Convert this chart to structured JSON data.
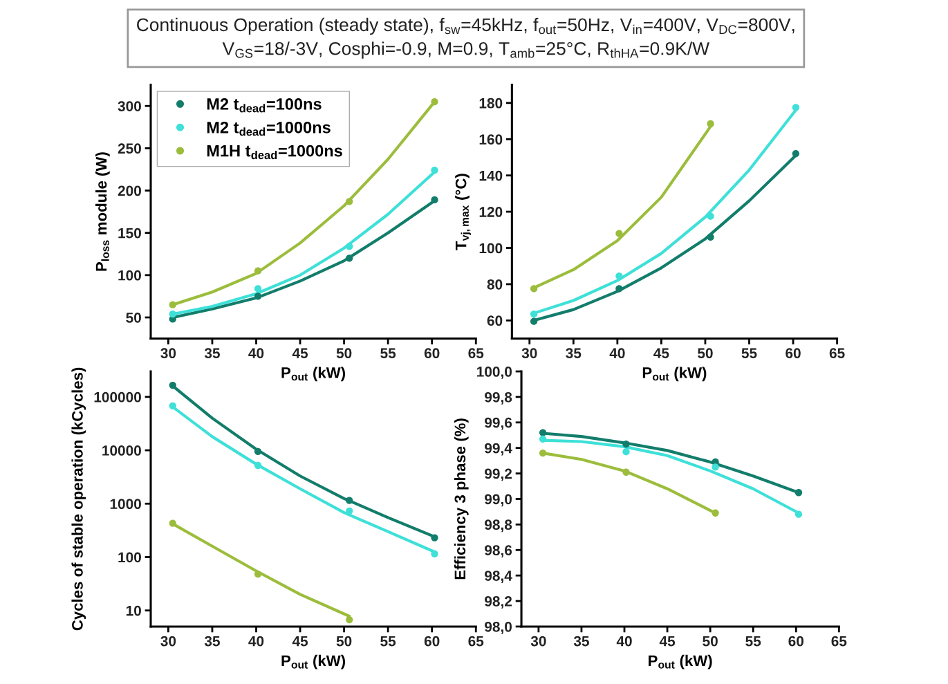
{
  "chart_data": [
    {
      "type": "scatter",
      "title": "Continuous Operation (steady state), f$_{sw}$=45kHz, f$_{out}$=50Hz, V$_{in}$=400V, V$_{DC}$=800V,\nV$_{GS}$=18/-3V, Cosphi=-0.9, M=0.9, T$_{amb}$=25°C, R$_{thHA}$=0.9K/W",
      "xlabel": "P$_{out}$ (kW)",
      "ylabel": "P$_{loss}$ module (W)",
      "xlim": [
        28,
        65
      ],
      "xticks": [
        30,
        35,
        40,
        45,
        50,
        55,
        60,
        65
      ],
      "ylim": [
        25,
        325
      ],
      "yticks": [
        50,
        100,
        150,
        200,
        250,
        300
      ],
      "grid": false,
      "legend": "top left",
      "marker": "circle",
      "series": [
        {
          "name": "M2 t$_{dead}$=100ns",
          "color": "#127d6b",
          "x": [
            30.5,
            40.2,
            50.6,
            60.3
          ],
          "values": [
            48,
            75,
            120,
            189
          ]
        },
        {
          "name": "M2 t$_{dead}$=1000ns",
          "color": "#3ee0d8",
          "x": [
            30.5,
            40.2,
            50.6,
            60.3
          ],
          "values": [
            54,
            84,
            134,
            224
          ]
        },
        {
          "name": "M1H t$_{dead}$=1000ns",
          "color": "#9cbd3c",
          "x": [
            30.5,
            40.2,
            50.6,
            60.3
          ],
          "values": [
            65,
            105,
            187,
            305
          ]
        },
        {
          "type": "line",
          "marker": "none",
          "color": "#127d6b",
          "x": [
            30.5,
            35,
            40,
            45,
            50,
            55,
            60.3
          ],
          "values": [
            50,
            60,
            73,
            93,
            117,
            150,
            188
          ]
        },
        {
          "type": "line",
          "marker": "none",
          "color": "#3ee0d8",
          "x": [
            30.5,
            35,
            40,
            45,
            50,
            55,
            60.3
          ],
          "values": [
            54,
            63,
            78,
            100,
            132,
            172,
            222
          ]
        },
        {
          "type": "line",
          "marker": "none",
          "color": "#9cbd3c",
          "x": [
            30.5,
            35,
            40,
            45,
            50,
            55,
            60.3
          ],
          "values": [
            65,
            80,
            102,
            138,
            182,
            237,
            305
          ]
        }
      ]
    },
    {
      "type": "scatter",
      "xlabel": "P$_{out}$ (kW)",
      "ylabel": "T$_{vj,max}$ (°C)",
      "xlim": [
        28,
        65
      ],
      "xticks": [
        30,
        35,
        40,
        45,
        50,
        55,
        60,
        65
      ],
      "ylim": [
        50,
        190
      ],
      "yticks": [
        60,
        80,
        100,
        120,
        140,
        160,
        180
      ],
      "grid": false,
      "marker": "circle",
      "series": [
        {
          "color": "#127d6b",
          "x": [
            30.5,
            40.2,
            50.6,
            60.3
          ],
          "values": [
            59.5,
            77.5,
            106,
            152
          ]
        },
        {
          "color": "#3ee0d8",
          "x": [
            30.5,
            40.2,
            50.6,
            60.3
          ],
          "values": [
            63.5,
            84.5,
            117.5,
            177.5
          ]
        },
        {
          "color": "#9cbd3c",
          "x": [
            30.5,
            40.2,
            50.6
          ],
          "values": [
            77.5,
            108,
            168.5
          ]
        },
        {
          "type": "line",
          "marker": "none",
          "color": "#127d6b",
          "x": [
            30.5,
            35,
            40,
            45,
            50,
            55,
            60.3
          ],
          "values": [
            60,
            66,
            76,
            89,
            105,
            126,
            151
          ]
        },
        {
          "type": "line",
          "marker": "none",
          "color": "#3ee0d8",
          "x": [
            30.5,
            35,
            40,
            45,
            50,
            55,
            60.3
          ],
          "values": [
            64,
            71,
            82,
            97,
            117,
            143,
            176
          ]
        },
        {
          "type": "line",
          "marker": "none",
          "color": "#9cbd3c",
          "x": [
            30.5,
            35,
            40,
            45,
            50.6
          ],
          "values": [
            78,
            88,
            104,
            128,
            167
          ]
        }
      ]
    },
    {
      "type": "scatter",
      "xlabel": "P$_{out}$ (kW)",
      "ylabel": "Cycles of stable operation (kCycles)",
      "log": "y",
      "xlim": [
        28,
        65
      ],
      "xticks": [
        30,
        35,
        40,
        45,
        50,
        55,
        60,
        65
      ],
      "ylim": [
        5,
        300000
      ],
      "yticks": [
        10,
        100,
        1000,
        10000,
        100000
      ],
      "grid": false,
      "marker": "circle",
      "series": [
        {
          "color": "#127d6b",
          "x": [
            30.5,
            40.2,
            50.6,
            60.3
          ],
          "values": [
            165000,
            9500,
            1150,
            230
          ]
        },
        {
          "color": "#3ee0d8",
          "x": [
            30.5,
            40.2,
            50.6,
            60.3
          ],
          "values": [
            68000,
            5200,
            730,
            115
          ]
        },
        {
          "color": "#9cbd3c",
          "x": [
            30.5,
            40.2,
            50.6
          ],
          "values": [
            430,
            48,
            6.7
          ]
        },
        {
          "type": "line",
          "marker": "none",
          "color": "#127d6b",
          "x": [
            30.5,
            35,
            40,
            45,
            50,
            55,
            60.3
          ],
          "values": [
            160000,
            40000,
            10500,
            3300,
            1250,
            550,
            240
          ]
        },
        {
          "type": "line",
          "marker": "none",
          "color": "#3ee0d8",
          "x": [
            30.5,
            35,
            40,
            45,
            50,
            55,
            60.3
          ],
          "values": [
            65000,
            18000,
            5500,
            1900,
            680,
            300,
            125
          ]
        },
        {
          "type": "line",
          "marker": "none",
          "color": "#9cbd3c",
          "x": [
            30.5,
            35,
            40,
            45,
            50.6
          ],
          "values": [
            420,
            160,
            55,
            20,
            7.8
          ]
        }
      ]
    },
    {
      "type": "scatter",
      "xlabel": "P$_{out}$ (kW)",
      "ylabel": "Efficiency 3 phase (%)",
      "xlim": [
        28,
        65
      ],
      "xticks": [
        30,
        35,
        40,
        45,
        50,
        55,
        60,
        65
      ],
      "ylim": [
        98.0,
        100.0
      ],
      "yticks": [
        {
          "value": 98.0,
          "label": "98,0"
        },
        {
          "value": 98.2,
          "label": "98,2"
        },
        {
          "value": 98.4,
          "label": "98,4"
        },
        {
          "value": 98.6,
          "label": "98,6"
        },
        {
          "value": 98.8,
          "label": "98,8"
        },
        {
          "value": 99.0,
          "label": "99,0"
        },
        {
          "value": 99.2,
          "label": "99,2"
        },
        {
          "value": 99.4,
          "label": "99,4"
        },
        {
          "value": 99.6,
          "label": "99,6"
        },
        {
          "value": 99.8,
          "label": "99,8"
        },
        {
          "value": 100.0,
          "label": "100,0"
        }
      ],
      "grid": false,
      "marker": "circle",
      "series": [
        {
          "color": "#127d6b",
          "x": [
            30.5,
            40.2,
            50.6,
            60.3
          ],
          "values": [
            99.52,
            99.43,
            99.29,
            99.05
          ]
        },
        {
          "color": "#3ee0d8",
          "x": [
            30.5,
            40.2,
            50.6,
            60.3
          ],
          "values": [
            99.47,
            99.37,
            99.25,
            98.88
          ]
        },
        {
          "color": "#9cbd3c",
          "x": [
            30.5,
            40.2,
            50.6
          ],
          "values": [
            99.36,
            99.21,
            98.89
          ]
        },
        {
          "type": "line",
          "marker": "none",
          "color": "#127d6b",
          "x": [
            30.5,
            35,
            40,
            45,
            50,
            55,
            60.3
          ],
          "values": [
            99.515,
            99.49,
            99.44,
            99.38,
            99.29,
            99.18,
            99.05
          ]
        },
        {
          "type": "line",
          "marker": "none",
          "color": "#3ee0d8",
          "x": [
            30.5,
            35,
            40,
            45,
            50,
            55,
            60.3
          ],
          "values": [
            99.46,
            99.45,
            99.41,
            99.34,
            99.22,
            99.08,
            98.89
          ]
        },
        {
          "type": "line",
          "marker": "none",
          "color": "#9cbd3c",
          "x": [
            30.5,
            35,
            40,
            45,
            50.6
          ],
          "values": [
            99.36,
            99.31,
            99.22,
            99.08,
            98.89
          ]
        }
      ]
    }
  ]
}
